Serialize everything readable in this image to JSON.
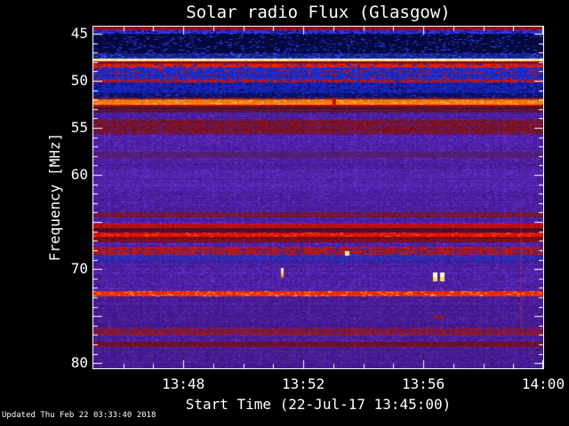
{
  "window": {
    "background_color": "#000000",
    "text_color": "#ffffff",
    "frame_color": "#ffffff"
  },
  "chart_data": {
    "type": "heatmap",
    "subtype": "radio-spectrogram",
    "title": "Solar radio Flux (Glasgow)",
    "xlabel": "Start Time (22-Jul-17 13:45:00)",
    "ylabel": "Frequency [MHz]",
    "footer": "Updated Thu Feb 22 03:33:40 2018",
    "x_axis": {
      "start_time": "13:45:00",
      "end_time": "14:00",
      "date": "22-Jul-17",
      "duration_minutes": 15,
      "minor_tick_minutes": 1,
      "major_ticks": [
        {
          "minute": 3,
          "label": "13:48"
        },
        {
          "minute": 7,
          "label": "13:52"
        },
        {
          "minute": 11,
          "label": "13:56"
        },
        {
          "minute": 15,
          "label": "14:00"
        }
      ]
    },
    "y_axis": {
      "freq_top": 44.25,
      "freq_bottom": 80.55,
      "labeled_ticks": [
        45,
        50,
        55,
        60,
        70,
        80
      ],
      "major_tick_step": 5,
      "minor_tick_step": 1
    },
    "legend": "none",
    "grid": "off",
    "background_band": {
      "c": "#4a1d9e",
      "n": 0.32,
      "alt": "#5b2ab8",
      "d": 0.5
    },
    "bands": [
      {
        "f0": 44.25,
        "f1": 44.6,
        "c": "#8e0f22",
        "n": 0.3
      },
      {
        "f0": 44.6,
        "f1": 44.98,
        "c": "#2a35d5",
        "n": 0.3,
        "alt": "#0a1070",
        "d": 0.45
      },
      {
        "f0": 44.98,
        "f1": 47.12,
        "c": "#05093f",
        "n": 0.55,
        "alt": "#2233bb",
        "d": 0.22
      },
      {
        "f0": 47.12,
        "f1": 47.62,
        "c": "#131f8e",
        "n": 0.45,
        "alt": "#3448d8",
        "d": 0.45
      },
      {
        "f0": 47.62,
        "f1": 47.97,
        "c": "#ffe896",
        "n": 0.22,
        "alt": "#fffce0",
        "d": 0.4
      },
      {
        "f0": 47.97,
        "f1": 48.22,
        "c": "#8e0c12",
        "n": 0.3
      },
      {
        "f0": 48.22,
        "f1": 48.58,
        "c": "#dc2008",
        "n": 0.35,
        "alt": "#3020a8",
        "d": 0.3
      },
      {
        "f0": 48.58,
        "f1": 49.92,
        "c": "#1f2ac6",
        "n": 0.42,
        "alt": "#bb1515",
        "d": 0.24
      },
      {
        "f0": 49.92,
        "f1": 50.22,
        "c": "#b51818",
        "n": 0.35,
        "alt": "#2225b8",
        "d": 0.35
      },
      {
        "f0": 50.22,
        "f1": 51.28,
        "c": "#1a22b2",
        "n": 0.42,
        "alt": "#0a1068",
        "d": 0.3
      },
      {
        "f0": 51.28,
        "f1": 51.82,
        "c": "#0a1062",
        "n": 0.45,
        "alt": "#222cb0",
        "d": 0.3
      },
      {
        "f0": 51.82,
        "f1": 52.02,
        "c": "#911616",
        "n": 0.35,
        "alt": "#1a1a90",
        "d": 0.28
      },
      {
        "f0": 52.02,
        "f1": 52.5,
        "c": "#f57d16",
        "n": 0.18,
        "alt": "#ffb040",
        "d": 0.25
      },
      {
        "f0": 52.5,
        "f1": 52.7,
        "c": "#bd1208",
        "n": 0.3
      },
      {
        "f0": 52.7,
        "f1": 53.42,
        "c": "#5a1338",
        "n": 0.35,
        "alt": "#6e1430",
        "d": 0.2
      },
      {
        "f0": 54.12,
        "f1": 55.62,
        "c": "#7c1226",
        "n": 0.4,
        "alt": "#55208a",
        "d": 0.3
      },
      {
        "f0": 57.55,
        "f1": 58.25,
        "c": "#561e76",
        "n": 0.3,
        "alt": "#63217a",
        "d": 0.25
      },
      {
        "f0": 59.6,
        "f1": 61.6,
        "c": "#4f21a6",
        "n": 0.3,
        "alt": "#5e2cba",
        "d": 0.5
      },
      {
        "f0": 63.95,
        "f1": 64.55,
        "c": "#7a1630",
        "n": 0.4,
        "alt": "#4e1d90",
        "d": 0.32
      },
      {
        "f0": 65.15,
        "f1": 65.62,
        "c": "#c01010",
        "n": 0.32
      },
      {
        "f0": 65.62,
        "f1": 66.1,
        "c": "#4a0e2e",
        "n": 0.3
      },
      {
        "f0": 66.1,
        "f1": 66.58,
        "c": "#e01206",
        "n": 0.3,
        "alt": "#ff5020",
        "d": 0.2
      },
      {
        "f0": 66.58,
        "f1": 67.12,
        "c": "#77101e",
        "n": 0.3
      },
      {
        "f0": 67.6,
        "f1": 68.45,
        "c": "#b01818",
        "n": 0.45,
        "alt": "#2a2ab0",
        "d": 0.35
      },
      {
        "f0": 68.45,
        "f1": 69.3,
        "c": "#2d2db4",
        "n": 0.45,
        "alt": "#4a1da2",
        "d": 0.45
      },
      {
        "f0": 72.32,
        "f1": 72.88,
        "c": "#e02c08",
        "n": 0.32,
        "alt": "#ff9c28",
        "d": 0.25
      },
      {
        "f0": 72.88,
        "f1": 76.28,
        "c": "#451a92",
        "n": 0.32,
        "alt": "#54259f",
        "d": 0.45
      },
      {
        "f0": 76.28,
        "f1": 77.02,
        "c": "#85182e",
        "n": 0.4,
        "alt": "#4e1d90",
        "d": 0.3
      },
      {
        "f0": 77.7,
        "f1": 78.28,
        "c": "#6e1226",
        "n": 0.35
      },
      {
        "f0": 78.28,
        "f1": 80.55,
        "c": "#451a92",
        "n": 0.32,
        "alt": "#54259f",
        "d": 0.45
      }
    ],
    "transients": [
      {
        "kind": "streak",
        "t": 14.23,
        "f0": 63.3,
        "f1": 76.2,
        "w": 2,
        "color": "rgba(225,40,18,0.28)"
      },
      {
        "kind": "redline",
        "t": 8.02,
        "f0": 51.8,
        "f1": 52.75,
        "w": 4,
        "color": "#c41207"
      },
      {
        "kind": "dash",
        "t": 6.28,
        "f0": 69.9,
        "f1": 70.95,
        "w": 3,
        "colors": [
          "#ffffe6",
          "#ffdf5e",
          "#e6700f"
        ]
      },
      {
        "kind": "spot",
        "t": 8.45,
        "f0": 68.1,
        "f1": 68.55,
        "w": 5,
        "color": "#fff2ae"
      },
      {
        "kind": "blob",
        "t": 11.39,
        "f0": 70.35,
        "f1": 71.35,
        "w": 5,
        "colors": [
          "#ffffd9",
          "#ffdf55"
        ]
      },
      {
        "kind": "blob",
        "t": 11.61,
        "f0": 70.35,
        "f1": 71.35,
        "w": 5,
        "colors": [
          "#ffffd9",
          "#ffdf55"
        ]
      },
      {
        "kind": "dot",
        "t": 11.4,
        "f0": 74.9,
        "f1": 75.3,
        "w": 4,
        "color": "#a81414"
      },
      {
        "kind": "dot",
        "t": 11.62,
        "f0": 74.9,
        "f1": 75.3,
        "w": 4,
        "color": "#a81414"
      }
    ]
  }
}
